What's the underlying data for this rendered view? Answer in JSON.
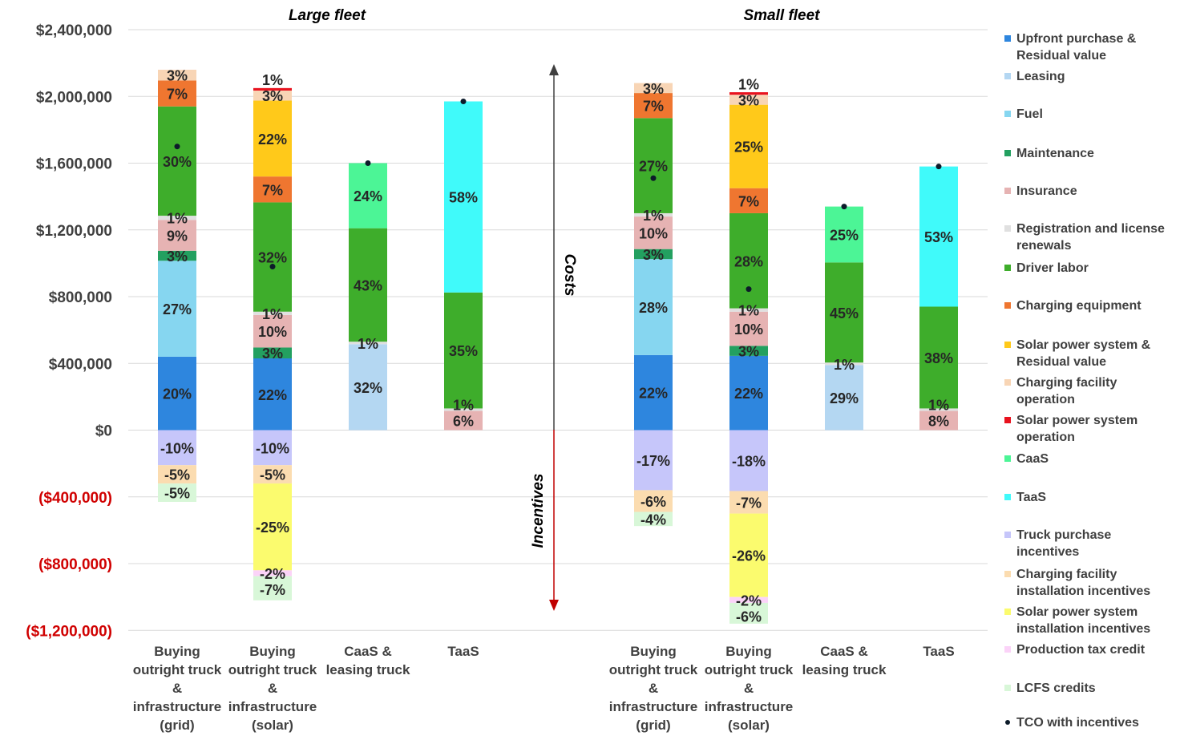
{
  "colors": {
    "upfront": "#2e86de",
    "leasing": "#b4d7f2",
    "fuel": "#86d6f0",
    "maintenance": "#23a060",
    "insurance": "#e6b3b3",
    "registration": "#e0e0e0",
    "driver": "#3ead2b",
    "charging_equipment": "#ef7630",
    "solar": "#ffc91a",
    "charging_operation": "#f8d5b5",
    "solar_operation": "#e8121e",
    "caas": "#4cf596",
    "taas": "#40fafa",
    "truck_incentives": "#c6c6fa",
    "charging_incentives": "#fbdcb0",
    "solar_incentives": "#fbfb6e",
    "ptc": "#fbd3f8",
    "lcfs": "#d8f7d8",
    "tco": "#0d1b2a",
    "negative_tick": "#d00000",
    "positive_tick": "#404040",
    "grid": "#d9d9d9"
  },
  "chart_data": {
    "type": "bar",
    "stacked": true,
    "ylim": [
      -1200000,
      2400000
    ],
    "yticks": [
      -1200000,
      -800000,
      -400000,
      0,
      400000,
      800000,
      1200000,
      1600000,
      2000000,
      2400000
    ],
    "ytick_labels": [
      "($1,200,000)",
      "($800,000)",
      "($400,000)",
      "$0",
      "$400,000",
      "$800,000",
      "$1,200,000",
      "$1,600,000",
      "$2,000,000",
      "$2,400,000"
    ],
    "grid": true,
    "legend_position": "right",
    "arrow_labels": {
      "up": "Costs",
      "down": "Incentives"
    },
    "panels": [
      {
        "title": "Large fleet",
        "bars": [
          {
            "label": "Buying\noutright truck\n&\ninfrastructure\n(grid)",
            "tco": 1700000,
            "segments": [
              {
                "key": "upfront",
                "value": 440000,
                "label": "20%"
              },
              {
                "key": "fuel",
                "value": 575000,
                "label": "27%"
              },
              {
                "key": "maintenance",
                "value": 60000,
                "label": "3%"
              },
              {
                "key": "insurance",
                "value": 185000,
                "label": "9%"
              },
              {
                "key": "registration",
                "value": 25000,
                "label": "1%"
              },
              {
                "key": "driver",
                "value": 655000,
                "label": "30%"
              },
              {
                "key": "charging_equipment",
                "value": 155000,
                "label": "7%"
              },
              {
                "key": "charging_operation",
                "value": 65000,
                "label": "3%"
              }
            ],
            "incentives": [
              {
                "key": "truck_incentives",
                "value": -210000,
                "label": "-10%"
              },
              {
                "key": "charging_incentives",
                "value": -110000,
                "label": "-5%"
              },
              {
                "key": "lcfs",
                "value": -110000,
                "label": "-5%"
              }
            ]
          },
          {
            "label": "Buying\noutright truck\n&\ninfrastructure\n(solar)",
            "tco": 980000,
            "segments": [
              {
                "key": "upfront",
                "value": 430000,
                "label": "22%"
              },
              {
                "key": "maintenance",
                "value": 65000,
                "label": "3%"
              },
              {
                "key": "insurance",
                "value": 195000,
                "label": "10%"
              },
              {
                "key": "registration",
                "value": 20000,
                "label": "1%"
              },
              {
                "key": "driver",
                "value": 655000,
                "label": "32%"
              },
              {
                "key": "charging_equipment",
                "value": 155000,
                "label": "7%"
              },
              {
                "key": "solar",
                "value": 455000,
                "label": "22%"
              },
              {
                "key": "charging_operation",
                "value": 60000,
                "label": "3%"
              },
              {
                "key": "solar_operation",
                "value": 15000,
                "label": "1%"
              }
            ],
            "incentives": [
              {
                "key": "truck_incentives",
                "value": -210000,
                "label": "-10%"
              },
              {
                "key": "charging_incentives",
                "value": -110000,
                "label": "-5%"
              },
              {
                "key": "solar_incentives",
                "value": -520000,
                "label": "-25%"
              },
              {
                "key": "ptc",
                "value": -35000,
                "label": "-2%"
              },
              {
                "key": "lcfs",
                "value": -145000,
                "label": "-7%"
              }
            ]
          },
          {
            "label": "CaaS &\nleasing truck",
            "tco": 1600000,
            "segments": [
              {
                "key": "leasing",
                "value": 515000,
                "label": "32%"
              },
              {
                "key": "registration",
                "value": 15000,
                "label": "1%"
              },
              {
                "key": "driver",
                "value": 680000,
                "label": "43%"
              },
              {
                "key": "caas",
                "value": 390000,
                "label": "24%"
              }
            ],
            "incentives": []
          },
          {
            "label": "TaaS",
            "tco": 1970000,
            "segments": [
              {
                "key": "insurance",
                "value": 115000,
                "label": "6%"
              },
              {
                "key": "registration",
                "value": 15000,
                "label": "1%"
              },
              {
                "key": "driver",
                "value": 695000,
                "label": "35%"
              },
              {
                "key": "taas",
                "value": 1145000,
                "label": "58%"
              }
            ],
            "incentives": []
          }
        ]
      },
      {
        "title": "Small fleet",
        "bars": [
          {
            "label": "Buying\noutright truck\n&\ninfrastructure\n(grid)",
            "tco": 1510000,
            "segments": [
              {
                "key": "upfront",
                "value": 450000,
                "label": "22%"
              },
              {
                "key": "fuel",
                "value": 575000,
                "label": "28%"
              },
              {
                "key": "maintenance",
                "value": 60000,
                "label": "3%"
              },
              {
                "key": "insurance",
                "value": 195000,
                "label": "10%"
              },
              {
                "key": "registration",
                "value": 20000,
                "label": "1%"
              },
              {
                "key": "driver",
                "value": 570000,
                "label": "27%"
              },
              {
                "key": "charging_equipment",
                "value": 150000,
                "label": "7%"
              },
              {
                "key": "charging_operation",
                "value": 60000,
                "label": "3%"
              }
            ],
            "incentives": [
              {
                "key": "truck_incentives",
                "value": -360000,
                "label": "-17%"
              },
              {
                "key": "charging_incentives",
                "value": -130000,
                "label": "-6%"
              },
              {
                "key": "lcfs",
                "value": -85000,
                "label": "-4%"
              }
            ]
          },
          {
            "label": "Buying\noutright truck\n&\ninfrastructure\n(solar)",
            "tco": 845000,
            "segments": [
              {
                "key": "upfront",
                "value": 445000,
                "label": "22%"
              },
              {
                "key": "maintenance",
                "value": 60000,
                "label": "3%"
              },
              {
                "key": "insurance",
                "value": 205000,
                "label": "10%"
              },
              {
                "key": "registration",
                "value": 20000,
                "label": "1%"
              },
              {
                "key": "driver",
                "value": 570000,
                "label": "28%"
              },
              {
                "key": "charging_equipment",
                "value": 150000,
                "label": "7%"
              },
              {
                "key": "solar",
                "value": 500000,
                "label": "25%"
              },
              {
                "key": "charging_operation",
                "value": 60000,
                "label": "3%"
              },
              {
                "key": "solar_operation",
                "value": 15000,
                "label": "1%"
              }
            ],
            "incentives": [
              {
                "key": "truck_incentives",
                "value": -365000,
                "label": "-18%"
              },
              {
                "key": "charging_incentives",
                "value": -135000,
                "label": "-7%"
              },
              {
                "key": "solar_incentives",
                "value": -500000,
                "label": "-26%"
              },
              {
                "key": "ptc",
                "value": -35000,
                "label": "-2%"
              },
              {
                "key": "lcfs",
                "value": -125000,
                "label": "-6%"
              }
            ]
          },
          {
            "label": "CaaS &\nleasing truck",
            "tco": 1340000,
            "segments": [
              {
                "key": "leasing",
                "value": 390000,
                "label": "29%"
              },
              {
                "key": "registration",
                "value": 15000,
                "label": "1%"
              },
              {
                "key": "driver",
                "value": 600000,
                "label": "45%"
              },
              {
                "key": "caas",
                "value": 335000,
                "label": "25%"
              }
            ],
            "incentives": []
          },
          {
            "label": "TaaS",
            "tco": 1580000,
            "segments": [
              {
                "key": "insurance",
                "value": 115000,
                "label": "8%"
              },
              {
                "key": "registration",
                "value": 15000,
                "label": "1%"
              },
              {
                "key": "driver",
                "value": 610000,
                "label": "38%"
              },
              {
                "key": "taas",
                "value": 840000,
                "label": "53%"
              }
            ],
            "incentives": []
          }
        ]
      }
    ],
    "legend": [
      {
        "key": "upfront",
        "label": "Upfront purchase &\nResidual value"
      },
      {
        "key": "leasing",
        "label": "Leasing"
      },
      {
        "key": "fuel",
        "label": "Fuel"
      },
      {
        "key": "maintenance",
        "label": "Maintenance"
      },
      {
        "key": "insurance",
        "label": "Insurance"
      },
      {
        "key": "registration",
        "label": "Registration and license\nrenewals"
      },
      {
        "key": "driver",
        "label": "Driver labor"
      },
      {
        "key": "charging_equipment",
        "label": "Charging equipment"
      },
      {
        "key": "solar",
        "label": "Solar power system &\nResidual value"
      },
      {
        "key": "charging_operation",
        "label": "Charging facility\noperation"
      },
      {
        "key": "solar_operation",
        "label": "Solar power system\noperation"
      },
      {
        "key": "caas",
        "label": "CaaS"
      },
      {
        "key": "taas",
        "label": "TaaS"
      },
      {
        "key": "truck_incentives",
        "label": "Truck purchase\nincentives"
      },
      {
        "key": "charging_incentives",
        "label": "Charging facility\ninstallation incentives"
      },
      {
        "key": "solar_incentives",
        "label": "Solar power system\ninstallation incentives"
      },
      {
        "key": "ptc",
        "label": "Production tax credit"
      },
      {
        "key": "lcfs",
        "label": "LCFS credits"
      },
      {
        "key": "tco",
        "label": "TCO with incentives",
        "marker": "dot"
      }
    ]
  }
}
